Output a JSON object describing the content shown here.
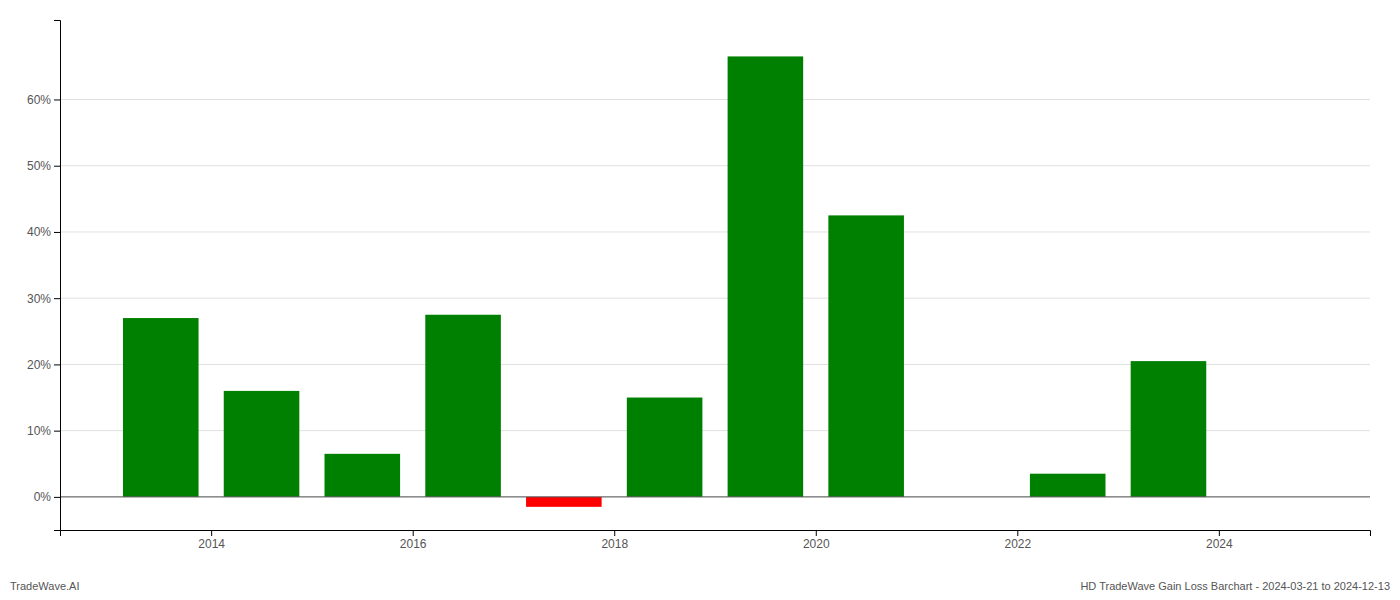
{
  "chart_data": {
    "type": "bar",
    "x": [
      2013.5,
      2014.5,
      2015.5,
      2016.5,
      2017.5,
      2018.5,
      2019.5,
      2020.5,
      2022.5,
      2023.5
    ],
    "values": [
      0.27,
      0.16,
      0.065,
      0.275,
      -0.015,
      0.15,
      0.665,
      0.425,
      0.035,
      0.205
    ],
    "colors": [
      "#008000",
      "#008000",
      "#008000",
      "#008000",
      "#ff0000",
      "#008000",
      "#008000",
      "#008000",
      "#008000",
      "#008000"
    ],
    "xlim": [
      2012.5,
      2025.5
    ],
    "xticks": [
      2014,
      2016,
      2018,
      2020,
      2022,
      2024
    ],
    "ylim": [
      -0.05,
      0.72
    ],
    "yticks": [
      {
        "value": 0.0,
        "label": "0%"
      },
      {
        "value": 0.1,
        "label": "10%"
      },
      {
        "value": 0.2,
        "label": "20%"
      },
      {
        "value": 0.3,
        "label": "30%"
      },
      {
        "value": 0.4,
        "label": "40%"
      },
      {
        "value": 0.5,
        "label": "50%"
      },
      {
        "value": 0.6,
        "label": "60%"
      }
    ],
    "grid": true,
    "annotations": [
      "TradeWave.AI",
      "HD TradeWave Gain Loss Barchart - 2024-03-21 to 2024-12-13"
    ]
  }
}
